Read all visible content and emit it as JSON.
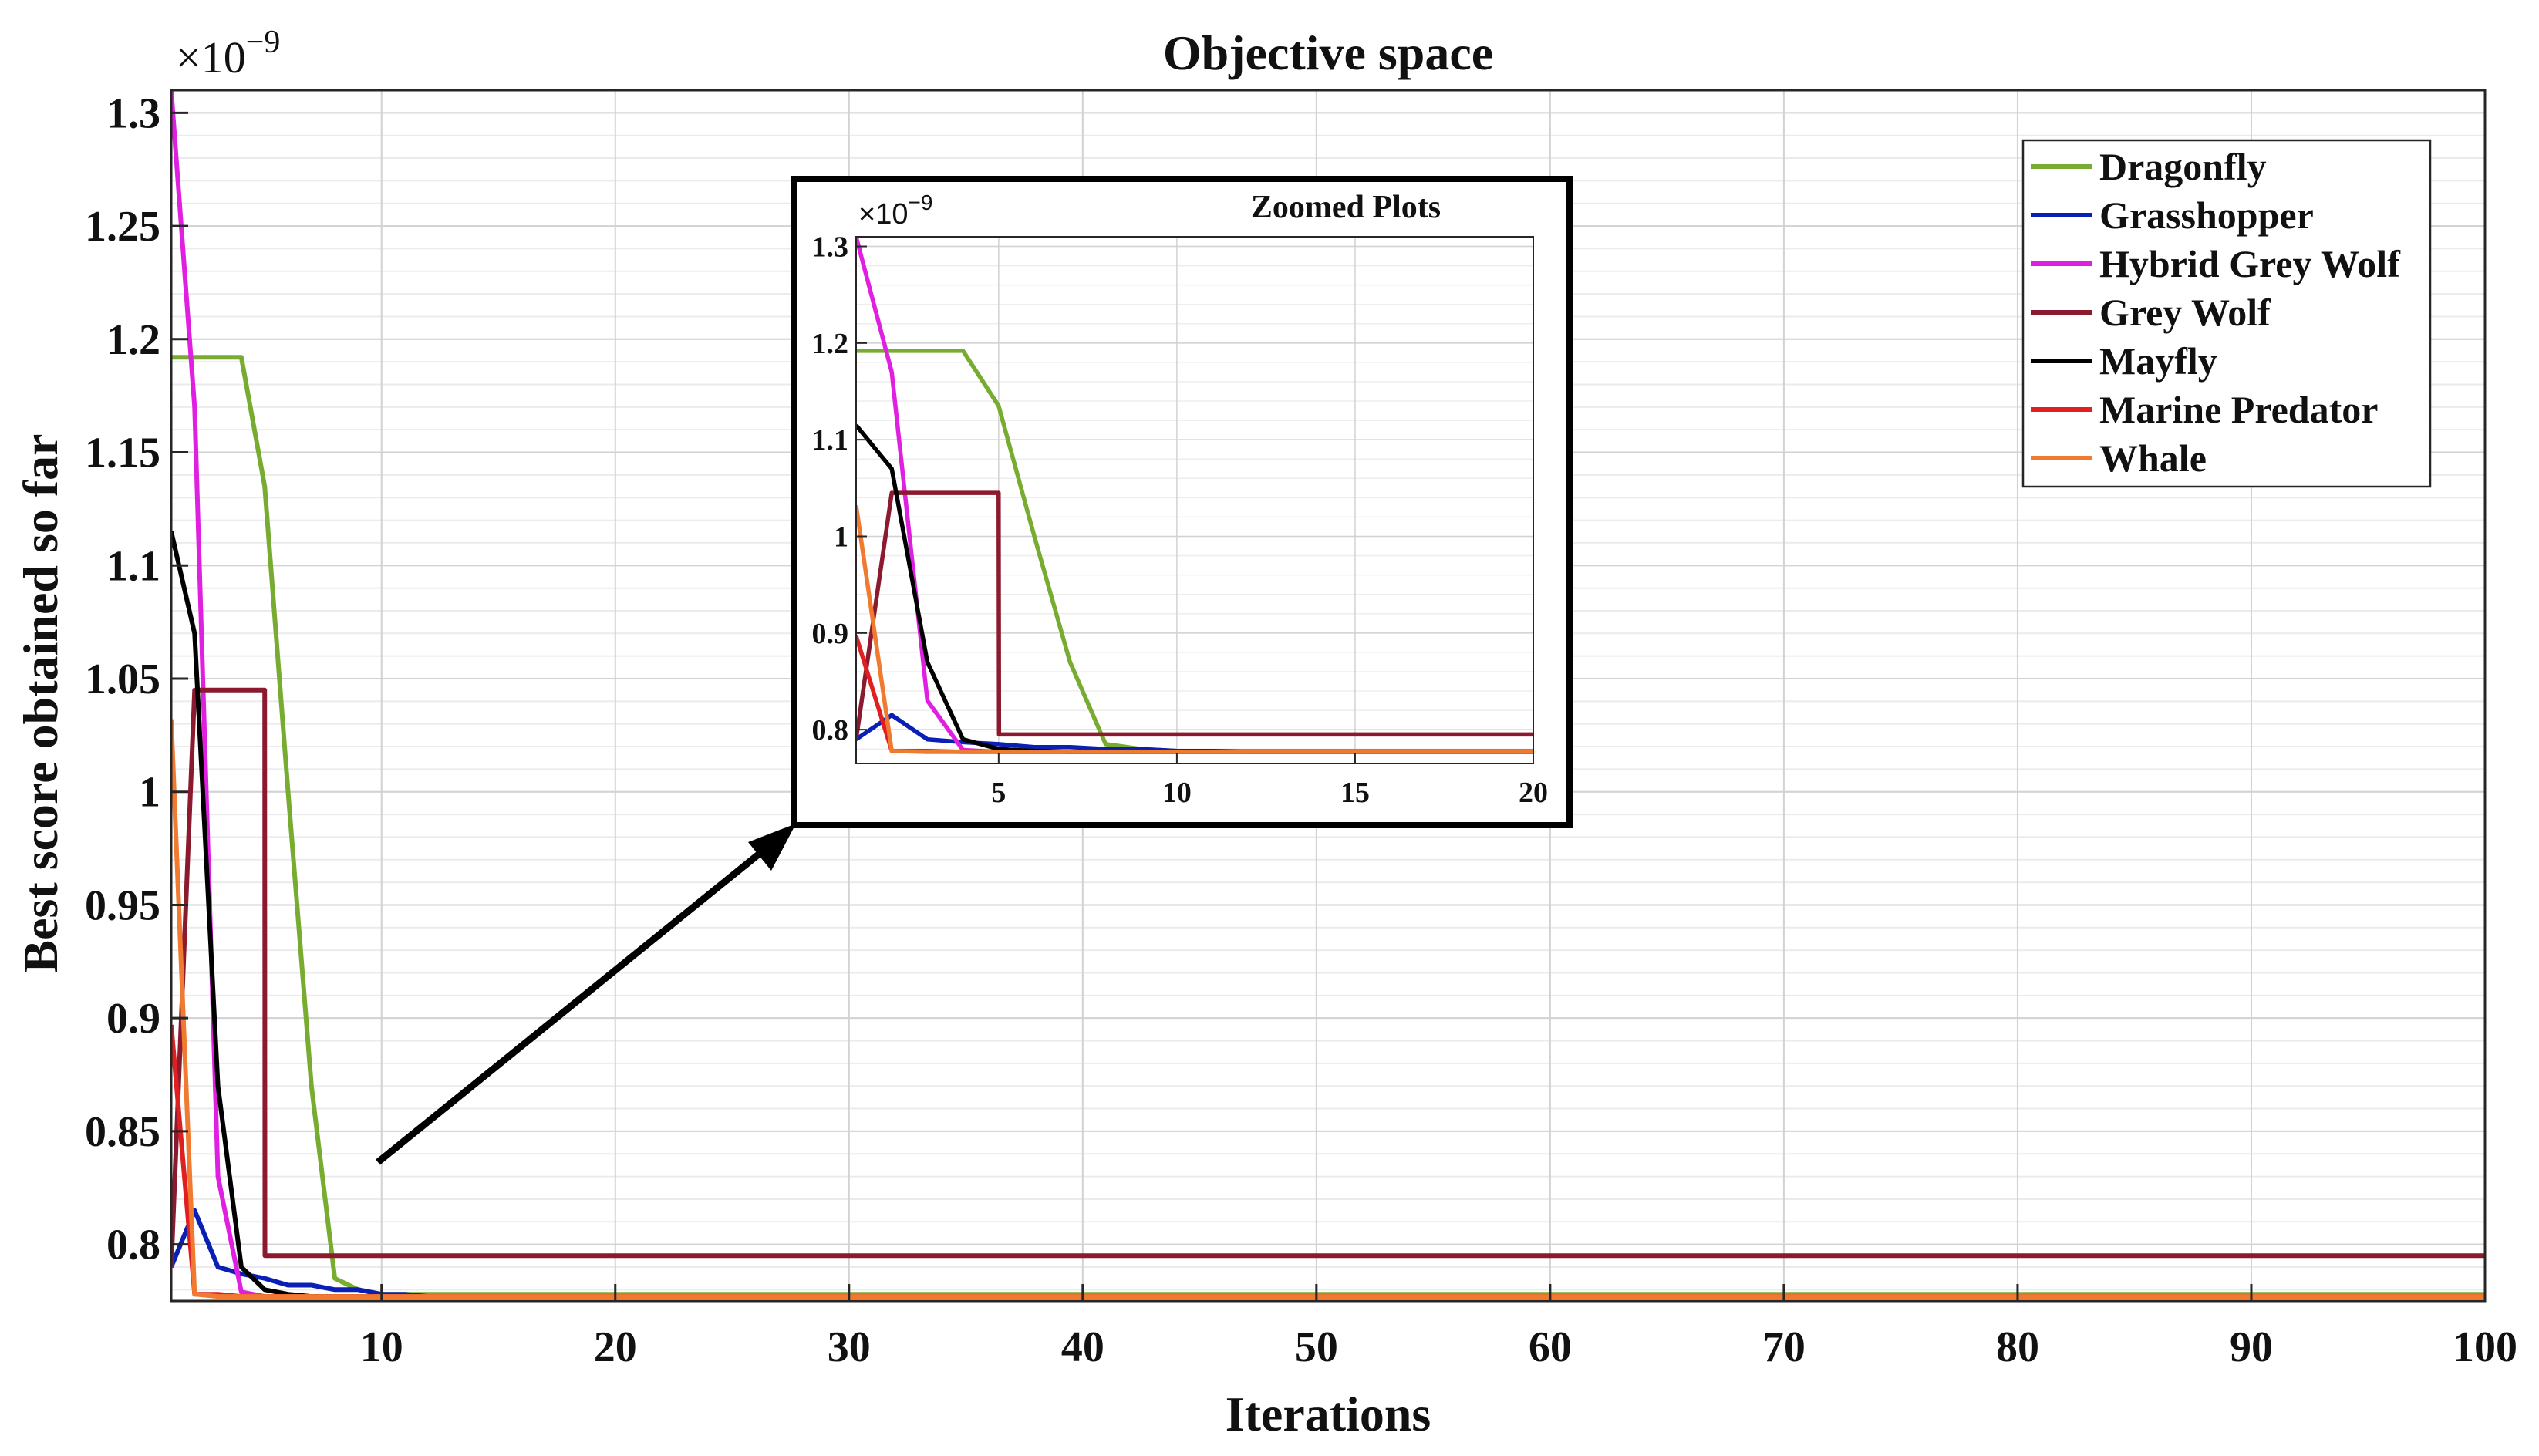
{
  "chart_data": [
    {
      "type": "line",
      "title": "Objective space",
      "xlabel": "Iterations",
      "ylabel": "Best score obtained so far",
      "yexponent": "×10",
      "yexponent_power": "−9",
      "xlim": [
        1,
        100
      ],
      "ylim": [
        0.775,
        1.31
      ],
      "xticks": [
        10,
        20,
        30,
        40,
        50,
        60,
        70,
        80,
        90,
        100
      ],
      "xtick_labels": [
        "10",
        "20",
        "30",
        "40",
        "50",
        "60",
        "70",
        "80",
        "90",
        "100"
      ],
      "yticks": [
        0.8,
        0.85,
        0.9,
        0.95,
        1.0,
        1.05,
        1.1,
        1.15,
        1.2,
        1.25,
        1.3
      ],
      "ytick_labels": [
        "0.8",
        "0.85",
        "0.9",
        "0.95",
        "1",
        "1.05",
        "1.1",
        "1.15",
        "1.2",
        "1.25",
        "1.3"
      ],
      "grid": true,
      "legend_position": "top-right",
      "series": [
        {
          "name": "Dragonfly",
          "color": "#77ac30",
          "x": [
            1,
            2,
            3,
            4,
            5,
            6,
            7,
            8,
            9,
            10,
            100
          ],
          "y": [
            1.192,
            1.192,
            1.192,
            1.192,
            1.135,
            1.0,
            0.87,
            0.785,
            0.78,
            0.778,
            0.778
          ]
        },
        {
          "name": "Grasshopper",
          "color": "#0a1fb4",
          "x": [
            1,
            2,
            3,
            4,
            5,
            6,
            7,
            8,
            9,
            10,
            11,
            12,
            100
          ],
          "y": [
            0.79,
            0.815,
            0.79,
            0.787,
            0.785,
            0.782,
            0.782,
            0.78,
            0.78,
            0.778,
            0.778,
            0.777,
            0.777
          ]
        },
        {
          "name": "Hybrid Grey Wolf",
          "color": "#e020e0",
          "x": [
            1,
            2,
            3,
            4,
            5,
            100
          ],
          "y": [
            1.31,
            1.17,
            0.83,
            0.779,
            0.777,
            0.777
          ]
        },
        {
          "name": "Grey Wolf",
          "color": "#8b1a2e",
          "x": [
            1,
            2,
            2.01,
            4,
            4.01,
            5,
            5.01,
            100
          ],
          "y": [
            0.79,
            1.045,
            1.045,
            1.045,
            1.045,
            1.045,
            0.795,
            0.795
          ]
        },
        {
          "name": "Mayfly",
          "color": "#000000",
          "x": [
            1,
            2,
            3,
            4,
            5,
            6,
            7,
            100
          ],
          "y": [
            1.115,
            1.07,
            0.87,
            0.79,
            0.78,
            0.778,
            0.777,
            0.777
          ]
        },
        {
          "name": "Marine Predator",
          "color": "#e02020",
          "x": [
            1,
            2,
            3,
            4,
            100
          ],
          "y": [
            0.897,
            0.778,
            0.778,
            0.777,
            0.777
          ]
        },
        {
          "name": "Whale",
          "color": "#f07a30",
          "x": [
            1,
            2,
            3,
            100
          ],
          "y": [
            1.032,
            0.778,
            0.777,
            0.777
          ]
        }
      ]
    },
    {
      "type": "line",
      "title": "Zoomed Plots",
      "yexponent": "×10",
      "yexponent_power": "−9",
      "xlim": [
        1,
        20
      ],
      "ylim": [
        0.765,
        1.31
      ],
      "xticks": [
        5,
        10,
        15,
        20
      ],
      "xtick_labels": [
        "5",
        "10",
        "15",
        "20"
      ],
      "yticks": [
        0.8,
        0.9,
        1.0,
        1.1,
        1.2,
        1.3
      ],
      "ytick_labels": [
        "0.8",
        "0.9",
        "1",
        "1.1",
        "1.2",
        "1.3"
      ],
      "grid": true
    }
  ]
}
